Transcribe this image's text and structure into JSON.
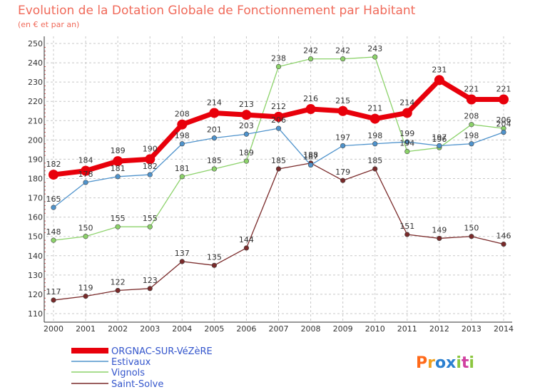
{
  "title": "Evolution de la Dotation Globale de Fonctionnement par Habitant",
  "subtitle": "(en € et par an)",
  "logo": {
    "letters": [
      "P",
      "r",
      "o",
      "x",
      "i",
      "t",
      "i"
    ]
  },
  "colors": {
    "title": "#f06a5a",
    "legend_text": "#3355cc",
    "grid": "#c8c8c8",
    "axis": "#333333",
    "tick_marks": "#e05050",
    "logo": [
      "#ff6a1a",
      "#f0a020",
      "#2a7fd0",
      "#2a7fd0",
      "#8cc63f",
      "#d040a0",
      "#8cc63f"
    ]
  },
  "chart_data": {
    "type": "line",
    "x": [
      "2000",
      "2001",
      "2002",
      "2003",
      "2004",
      "2005",
      "2006",
      "2007",
      "2008",
      "2009",
      "2010",
      "2011",
      "2012",
      "2013",
      "2014"
    ],
    "ylim": [
      110,
      250
    ],
    "yticks": [
      "110",
      "120",
      "130",
      "140",
      "150",
      "160",
      "170",
      "180",
      "190",
      "200",
      "210",
      "220",
      "230",
      "240",
      "250"
    ],
    "grid": true,
    "legend_position": "bottom-left",
    "series": [
      {
        "name": "ORGNAC-SUR-VéZèRE",
        "color": "#e8000b",
        "values": [
          182,
          184,
          189,
          190,
          208,
          214,
          213,
          212,
          216,
          215,
          211,
          214,
          231,
          221,
          221
        ]
      },
      {
        "name": "Estivaux",
        "color": "#4f93cc",
        "values": [
          165,
          178,
          181,
          182,
          198,
          201,
          203,
          206,
          187,
          197,
          198,
          199,
          197,
          198,
          204
        ]
      },
      {
        "name": "Vignols",
        "color": "#8cd26a",
        "values": [
          148,
          150,
          155,
          155,
          181,
          185,
          189,
          238,
          242,
          242,
          243,
          194,
          196,
          208,
          206
        ]
      },
      {
        "name": "Saint-Solve",
        "color": "#7a2a2a",
        "values": [
          117,
          119,
          122,
          123,
          137,
          135,
          144,
          185,
          188,
          179,
          185,
          151,
          149,
          150,
          146
        ]
      }
    ]
  }
}
